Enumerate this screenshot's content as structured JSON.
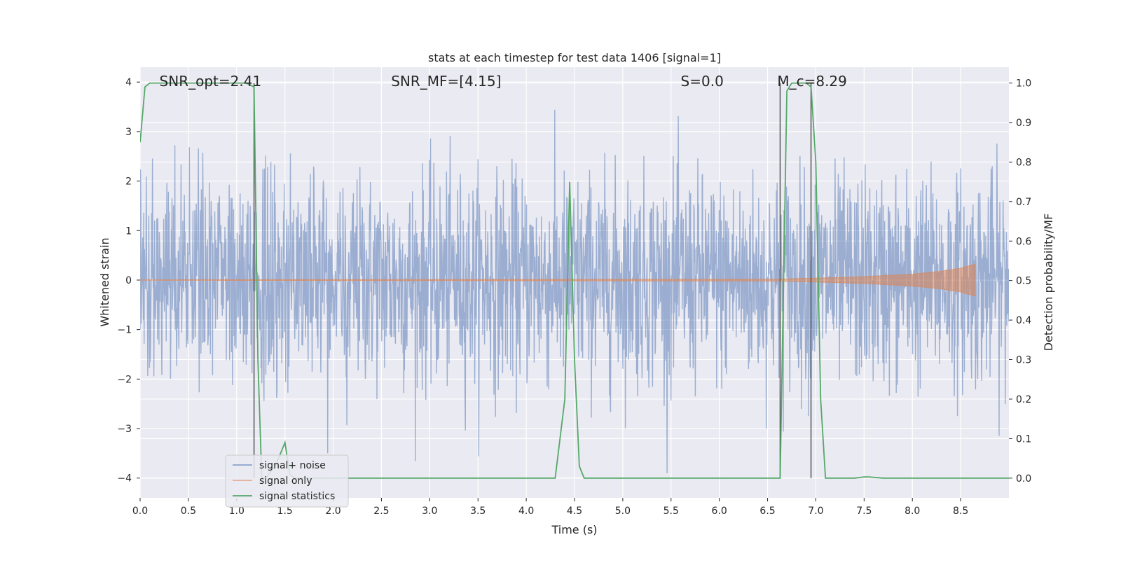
{
  "chart_data": {
    "type": "line",
    "title": "stats at each timestep for test data 1406 [signal=1]",
    "xlabel": "Time (s)",
    "ylabel_left": "Whitened strain",
    "ylabel_right": "Detection probability/MF",
    "xlim": [
      0,
      9
    ],
    "ylim_left": [
      -4.4,
      4.3
    ],
    "ylim_right": [
      -0.05,
      1.04
    ],
    "x_ticks": [
      "0.0",
      "0.5",
      "1.0",
      "1.5",
      "2.0",
      "2.5",
      "3.0",
      "3.5",
      "4.0",
      "4.5",
      "5.0",
      "5.5",
      "6.0",
      "6.5",
      "7.0",
      "7.5",
      "8.0",
      "8.5"
    ],
    "y_ticks_left": [
      "4",
      "3",
      "2",
      "1",
      "0",
      "−1",
      "−2",
      "−3",
      "−4"
    ],
    "y_ticks_right": [
      "1.0",
      "0.9",
      "0.8",
      "0.7",
      "0.6",
      "0.5",
      "0.4",
      "0.3",
      "0.2",
      "0.1",
      "0.0"
    ],
    "grid": true,
    "legend_position": "lower-left",
    "series": [
      {
        "name": "signal+ noise",
        "axis": "left",
        "color": "#4c72b0",
        "description_values": "dense whitened strain noise, amplitude roughly within [-3.9, 3.9] across 0-9 s"
      },
      {
        "name": "signal only",
        "axis": "left",
        "color": "#dd8452",
        "x": [
          0,
          6.6,
          7.0,
          7.5,
          8.0,
          8.3,
          8.5,
          8.6,
          8.65
        ],
        "envelope": [
          0.005,
          0.02,
          0.04,
          0.07,
          0.12,
          0.18,
          0.24,
          0.3,
          0.32
        ]
      },
      {
        "name": "signal statistics",
        "axis": "right",
        "color": "#55a868",
        "x": [
          0,
          0.05,
          0.1,
          0.2,
          0.5,
          1.0,
          1.1,
          1.18,
          1.22,
          1.26,
          1.3,
          1.4,
          1.5,
          1.55,
          1.6,
          2.0,
          3.0,
          4.0,
          4.3,
          4.4,
          4.45,
          4.5,
          4.55,
          4.6,
          5.0,
          6.0,
          6.6,
          6.63,
          6.7,
          6.75,
          6.8,
          6.9,
          6.95,
          7.0,
          7.05,
          7.1,
          7.4,
          7.5,
          7.55,
          7.7,
          8.0,
          9.0
        ],
        "values": [
          0.85,
          0.99,
          1.0,
          1.0,
          1.0,
          1.0,
          1.0,
          0.99,
          0.3,
          0.0,
          0.0,
          0.03,
          0.09,
          0.01,
          0.0,
          0.0,
          0.0,
          0.0,
          0.0,
          0.2,
          0.75,
          0.3,
          0.03,
          0.0,
          0.0,
          0.0,
          0.0,
          0.0,
          0.98,
          1.0,
          1.0,
          1.0,
          0.99,
          0.8,
          0.2,
          0.0,
          0.0,
          0.003,
          0.003,
          0.0,
          0.0,
          0.0
        ]
      }
    ],
    "vlines": [
      1.18,
      6.63,
      6.95
    ],
    "annotations": [
      {
        "x": 0.2,
        "text": "SNR_opt=2.41"
      },
      {
        "x": 2.6,
        "text": "SNR_MF=[4.15]"
      },
      {
        "x": 5.6,
        "text": "S=0.0"
      },
      {
        "x": 6.6,
        "text": "M_c=8.29"
      }
    ]
  }
}
